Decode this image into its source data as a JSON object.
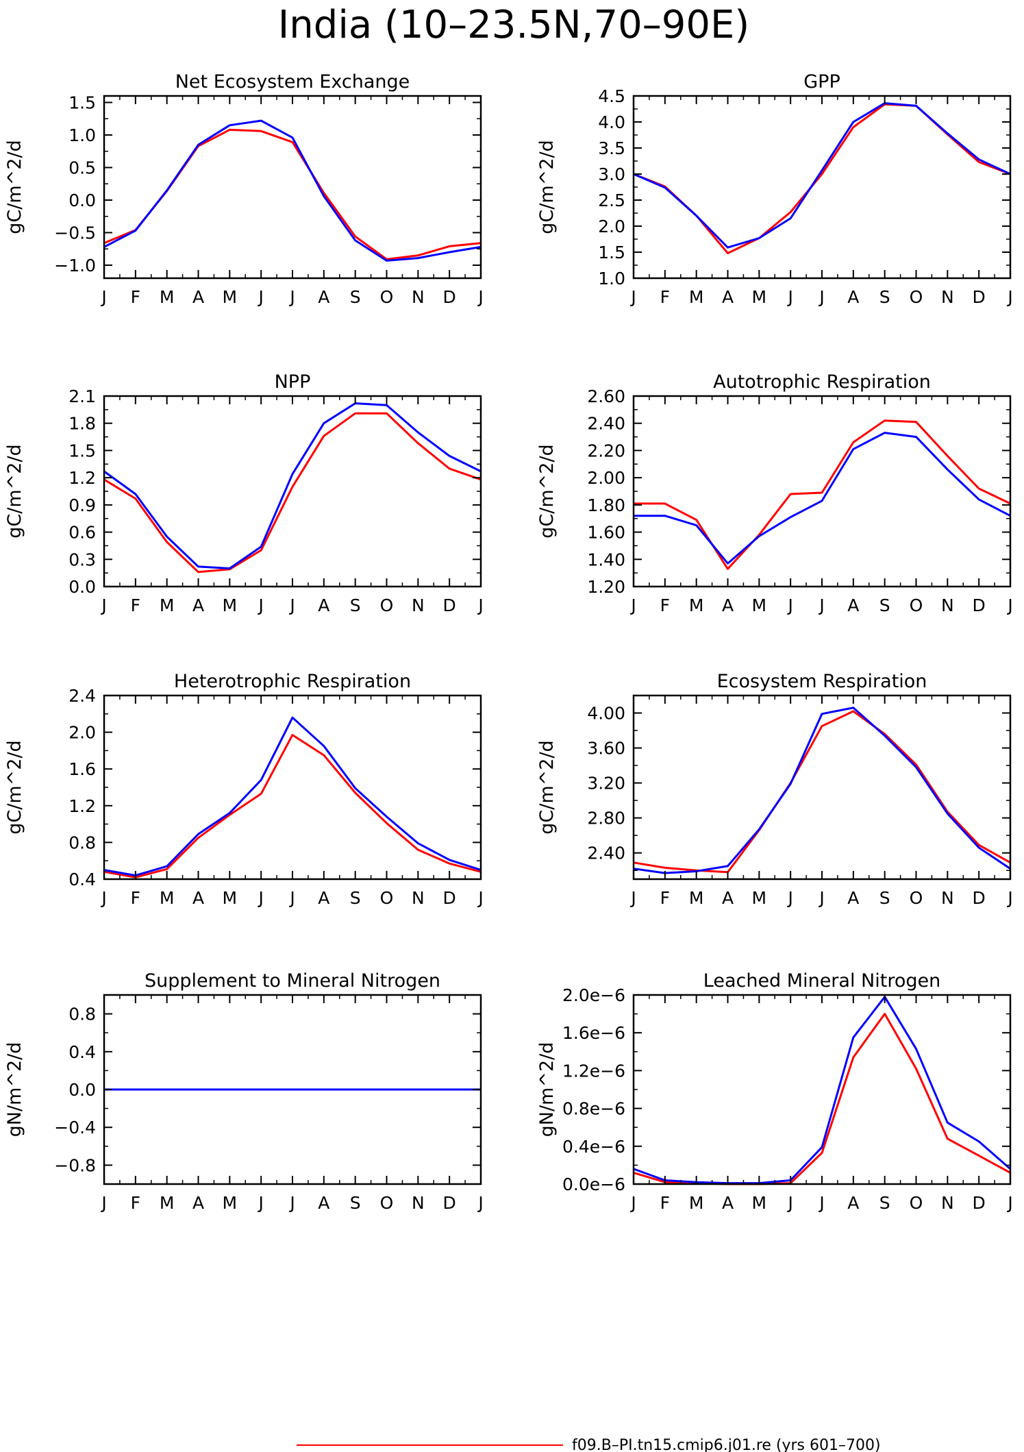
{
  "figure": {
    "title": "India (10–23.5N,70–90E)",
    "legend": [
      {
        "label": "f09.B–PI.tn15.cmip6.j01.re (yrs 601–700)",
        "color": "#ff0000"
      }
    ]
  },
  "months": [
    "J",
    "F",
    "M",
    "A",
    "M",
    "J",
    "J",
    "A",
    "S",
    "O",
    "N",
    "D",
    "J"
  ],
  "chart_data": [
    {
      "type": "line",
      "title": "Net Ecosystem Exchange",
      "xlabel": "",
      "ylabel": "gC/m^2/d",
      "ylim": [
        -1.2,
        1.6
      ],
      "yticks": [
        -1.0,
        -0.5,
        0.0,
        0.5,
        1.0,
        1.5
      ],
      "ytick_labels": [
        "−1.0",
        "−0.5",
        "0.0",
        "0.5",
        "1.0",
        "1.5"
      ],
      "series": [
        {
          "color": "#ff0000",
          "values": [
            -0.66,
            -0.46,
            0.14,
            0.83,
            1.08,
            1.06,
            0.89,
            0.11,
            -0.56,
            -0.91,
            -0.85,
            -0.71,
            -0.66
          ]
        },
        {
          "color": "#0000ff",
          "values": [
            -0.72,
            -0.47,
            0.15,
            0.85,
            1.15,
            1.22,
            0.96,
            0.06,
            -0.62,
            -0.93,
            -0.89,
            -0.8,
            -0.72
          ]
        }
      ]
    },
    {
      "type": "line",
      "title": "GPP",
      "xlabel": "",
      "ylabel": "gC/m^2/d",
      "ylim": [
        1.0,
        4.5
      ],
      "yticks": [
        1.0,
        1.5,
        2.0,
        2.5,
        3.0,
        3.5,
        4.0,
        4.5
      ],
      "ytick_labels": [
        "1.0",
        "1.5",
        "2.0",
        "2.5",
        "3.0",
        "3.5",
        "4.0",
        "4.5"
      ],
      "series": [
        {
          "color": "#ff0000",
          "values": [
            3.0,
            2.76,
            2.2,
            1.48,
            1.77,
            2.27,
            3.0,
            3.9,
            4.34,
            4.31,
            3.76,
            3.23,
            3.0
          ]
        },
        {
          "color": "#0000ff",
          "values": [
            3.0,
            2.74,
            2.2,
            1.59,
            1.77,
            2.15,
            3.07,
            4.0,
            4.36,
            4.31,
            3.78,
            3.28,
            3.0
          ]
        }
      ]
    },
    {
      "type": "line",
      "title": "NPP",
      "xlabel": "",
      "ylabel": "gC/m^2/d",
      "ylim": [
        0.0,
        2.1
      ],
      "yticks": [
        0.0,
        0.3,
        0.6,
        0.9,
        1.2,
        1.5,
        1.8,
        2.1
      ],
      "ytick_labels": [
        "0.0",
        "0.3",
        "0.6",
        "0.9",
        "1.2",
        "1.5",
        "1.8",
        "2.1"
      ],
      "series": [
        {
          "color": "#ff0000",
          "values": [
            1.18,
            0.97,
            0.49,
            0.16,
            0.19,
            0.4,
            1.1,
            1.66,
            1.91,
            1.91,
            1.58,
            1.3,
            1.18
          ]
        },
        {
          "color": "#0000ff",
          "values": [
            1.27,
            1.02,
            0.55,
            0.22,
            0.2,
            0.44,
            1.24,
            1.8,
            2.02,
            2.0,
            1.7,
            1.44,
            1.27
          ]
        }
      ]
    },
    {
      "type": "line",
      "title": "Autotrophic Respiration",
      "xlabel": "",
      "ylabel": "gC/m^2/d",
      "ylim": [
        1.2,
        2.6
      ],
      "yticks": [
        1.2,
        1.4,
        1.6,
        1.8,
        2.0,
        2.2,
        2.4,
        2.6
      ],
      "ytick_labels": [
        "1.20",
        "1.40",
        "1.60",
        "1.80",
        "2.00",
        "2.20",
        "2.40",
        "2.60"
      ],
      "series": [
        {
          "color": "#ff0000",
          "values": [
            1.81,
            1.81,
            1.69,
            1.33,
            1.58,
            1.88,
            1.89,
            2.26,
            2.42,
            2.41,
            2.16,
            1.92,
            1.81
          ]
        },
        {
          "color": "#0000ff",
          "values": [
            1.72,
            1.72,
            1.65,
            1.37,
            1.57,
            1.71,
            1.83,
            2.21,
            2.33,
            2.3,
            2.06,
            1.84,
            1.72
          ]
        }
      ]
    },
    {
      "type": "line",
      "title": "Heterotrophic Respiration",
      "xlabel": "",
      "ylabel": "gC/m^2/d",
      "ylim": [
        0.4,
        2.4
      ],
      "yticks": [
        0.4,
        0.8,
        1.2,
        1.6,
        2.0,
        2.4
      ],
      "ytick_labels": [
        "0.4",
        "0.8",
        "1.2",
        "1.6",
        "2.0",
        "2.4"
      ],
      "series": [
        {
          "color": "#ff0000",
          "values": [
            0.48,
            0.42,
            0.51,
            0.85,
            1.1,
            1.33,
            1.97,
            1.75,
            1.34,
            1.01,
            0.72,
            0.57,
            0.48
          ]
        },
        {
          "color": "#0000ff",
          "values": [
            0.5,
            0.44,
            0.54,
            0.89,
            1.12,
            1.48,
            2.16,
            1.85,
            1.39,
            1.08,
            0.79,
            0.61,
            0.5
          ]
        }
      ]
    },
    {
      "type": "line",
      "title": "Ecosystem Respiration",
      "xlabel": "",
      "ylabel": "gC/m^2/d",
      "ylim": [
        2.1,
        4.2
      ],
      "yticks": [
        2.4,
        2.8,
        3.2,
        3.6,
        4.0
      ],
      "ytick_labels": [
        "2.40",
        "2.80",
        "3.20",
        "3.60",
        "4.00"
      ],
      "series": [
        {
          "color": "#ff0000",
          "values": [
            2.29,
            2.23,
            2.2,
            2.18,
            2.66,
            3.2,
            3.85,
            4.02,
            3.76,
            3.41,
            2.87,
            2.49,
            2.29
          ]
        },
        {
          "color": "#0000ff",
          "values": [
            2.22,
            2.17,
            2.19,
            2.25,
            2.67,
            3.19,
            3.99,
            4.06,
            3.74,
            3.38,
            2.85,
            2.46,
            2.22
          ]
        }
      ]
    },
    {
      "type": "line",
      "title": "Supplement to Mineral Nitrogen",
      "xlabel": "",
      "ylabel": "gN/m^2/d",
      "ylim": [
        -1.0,
        1.0
      ],
      "yticks": [
        -0.8,
        -0.4,
        0.0,
        0.4,
        0.8
      ],
      "ytick_labels": [
        "−0.8",
        "−0.4",
        "0.0",
        "0.4",
        "0.8"
      ],
      "series": [
        {
          "color": "#ff0000",
          "values": [
            0,
            0,
            0,
            0,
            0,
            0,
            0,
            0,
            0,
            0,
            0,
            0,
            0
          ]
        },
        {
          "color": "#0000ff",
          "values": [
            0,
            0,
            0,
            0,
            0,
            0,
            0,
            0,
            0,
            0,
            0,
            0,
            0
          ]
        }
      ]
    },
    {
      "type": "line",
      "title": "Leached Mineral Nitrogen",
      "xlabel": "",
      "ylabel": "gN/m^2/d",
      "ylim": [
        0.0,
        2e-06
      ],
      "yticks": [
        0.0,
        4e-07,
        8e-07,
        1.2e-06,
        1.6e-06,
        2e-06
      ],
      "ytick_labels": [
        "0.0e−6",
        "0.4e−6",
        "0.8e−6",
        "1.2e−6",
        "1.6e−6",
        "2.0e−6"
      ],
      "series": [
        {
          "color": "#ff0000",
          "values": [
            1.2e-07,
            2e-08,
            1e-08,
            0.0,
            0.0,
            1e-08,
            3.3e-07,
            1.34e-06,
            1.8e-06,
            1.22e-06,
            4.8e-07,
            3e-07,
            1.2e-07
          ]
        },
        {
          "color": "#0000ff",
          "values": [
            1.6e-07,
            4e-08,
            2e-08,
            1e-08,
            1e-08,
            4e-08,
            3.9e-07,
            1.55e-06,
            1.98e-06,
            1.43e-06,
            6.5e-07,
            4.5e-07,
            1.6e-07
          ]
        }
      ]
    }
  ]
}
